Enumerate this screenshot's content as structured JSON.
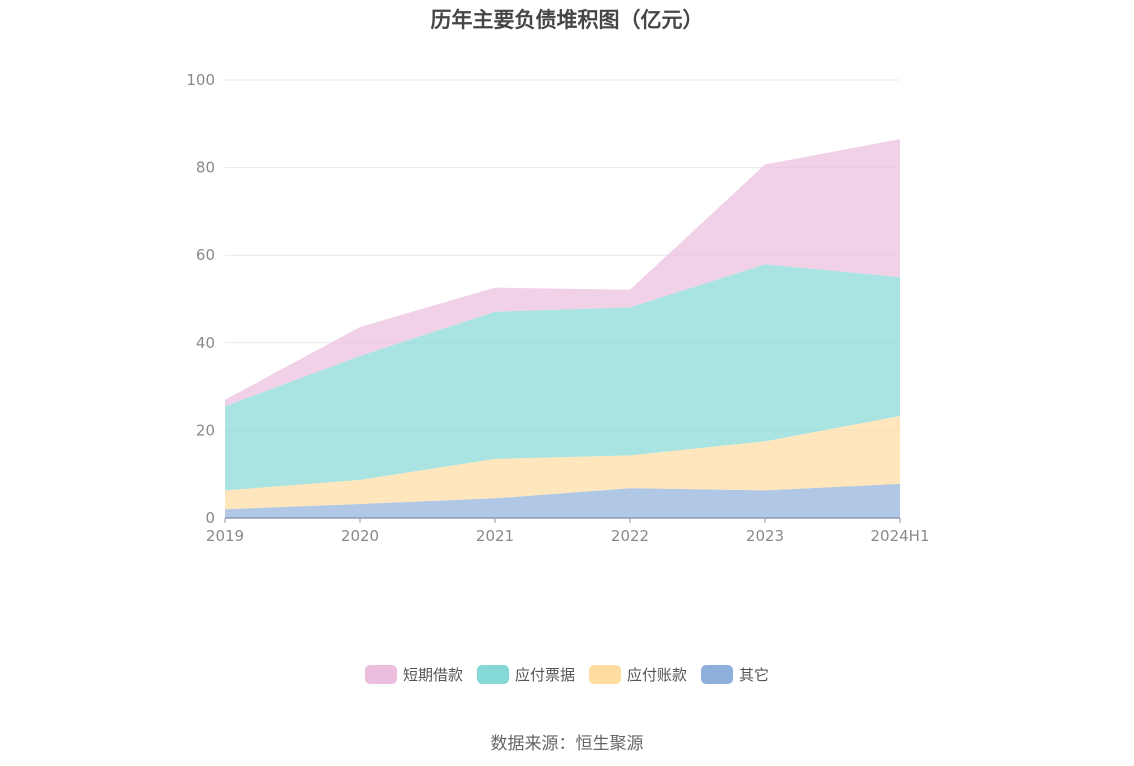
{
  "chart_data": {
    "type": "area",
    "stacked": true,
    "title": "历年主要负债堆积图（亿元）",
    "categories": [
      "2019",
      "2020",
      "2021",
      "2022",
      "2023",
      "2024H1"
    ],
    "ylim": [
      0,
      100
    ],
    "yticks": [
      0,
      20,
      40,
      60,
      80,
      100
    ],
    "grid": true,
    "legend_position": "bottom",
    "series": [
      {
        "name": "其它",
        "color": "#8eafdc",
        "values": [
          2.0,
          3.2,
          4.5,
          6.8,
          6.3,
          7.8
        ]
      },
      {
        "name": "应付账款",
        "color": "#ffdca0",
        "values": [
          4.3,
          5.5,
          9.0,
          7.5,
          11.2,
          15.5
        ]
      },
      {
        "name": "应付票据",
        "color": "#84d8d6",
        "values": [
          19.2,
          28.3,
          33.6,
          33.8,
          40.4,
          31.7
        ]
      },
      {
        "name": "短期借款",
        "color": "#ebbedd",
        "values": [
          1.5,
          6.6,
          5.5,
          4.0,
          22.8,
          31.5
        ]
      }
    ],
    "legend_order": [
      "短期借款",
      "应付票据",
      "应付账款",
      "其它"
    ]
  },
  "source_text": "数据来源：恒生聚源"
}
